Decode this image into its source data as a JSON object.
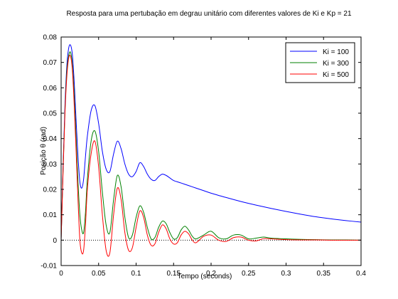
{
  "chart_data": {
    "type": "line",
    "title": "Resposta para uma pertubação em degrau unitário com diferentes valores de Ki e Kp = 21",
    "xlabel": "Tempo (seconds)",
    "ylabel": "Posição θ (rad)",
    "xlim": [
      0,
      0.4
    ],
    "ylim": [
      -0.01,
      0.08
    ],
    "xticks": [
      0,
      0.05,
      0.1,
      0.15,
      0.2,
      0.25,
      0.3,
      0.35,
      0.4
    ],
    "xtick_labels": [
      "0",
      "0.05",
      "0.1",
      "0.15",
      "0.2",
      "0.25",
      "0.3",
      "0.35",
      "0.4"
    ],
    "yticks": [
      -0.01,
      0,
      0.01,
      0.02,
      0.03,
      0.04,
      0.05,
      0.06,
      0.07,
      0.08
    ],
    "ytick_labels": [
      "-0.01",
      "0",
      "0.01",
      "0.02",
      "0.03",
      "0.04",
      "0.05",
      "0.06",
      "0.07",
      "0.08"
    ],
    "grid": false,
    "legend_position": "top-right",
    "zero_reference_line": {
      "value": 0,
      "style": "dotted",
      "color": "#000000"
    },
    "series": [
      {
        "name": "Ki = 100",
        "color": "#0000ff",
        "x": [
          0,
          0.0025,
          0.005,
          0.0075,
          0.01,
          0.0125,
          0.015,
          0.0175,
          0.02,
          0.0225,
          0.025,
          0.0275,
          0.03,
          0.0325,
          0.035,
          0.04,
          0.045,
          0.05,
          0.055,
          0.06,
          0.065,
          0.07,
          0.075,
          0.08,
          0.085,
          0.09,
          0.095,
          0.1,
          0.105,
          0.11,
          0.115,
          0.12,
          0.125,
          0.13,
          0.135,
          0.14,
          0.145,
          0.15,
          0.16,
          0.17,
          0.18,
          0.19,
          0.2,
          0.22,
          0.24,
          0.26,
          0.28,
          0.3,
          0.32,
          0.34,
          0.36,
          0.38,
          0.4
        ],
        "y": [
          0,
          0.028,
          0.052,
          0.068,
          0.0755,
          0.0768,
          0.073,
          0.062,
          0.047,
          0.033,
          0.023,
          0.0205,
          0.024,
          0.033,
          0.041,
          0.051,
          0.053,
          0.046,
          0.035,
          0.028,
          0.027,
          0.034,
          0.039,
          0.036,
          0.03,
          0.026,
          0.025,
          0.027,
          0.0305,
          0.029,
          0.026,
          0.024,
          0.0235,
          0.025,
          0.026,
          0.0255,
          0.0245,
          0.0235,
          0.0225,
          0.0215,
          0.0205,
          0.0195,
          0.0185,
          0.0168,
          0.0152,
          0.0138,
          0.0125,
          0.0113,
          0.0102,
          0.0092,
          0.0084,
          0.0077,
          0.0071
        ]
      },
      {
        "name": "Ki = 300",
        "color": "#008000",
        "x": [
          0,
          0.0025,
          0.005,
          0.0075,
          0.01,
          0.0125,
          0.015,
          0.0175,
          0.02,
          0.0225,
          0.025,
          0.0275,
          0.03,
          0.0325,
          0.035,
          0.04,
          0.045,
          0.05,
          0.055,
          0.06,
          0.065,
          0.07,
          0.075,
          0.08,
          0.085,
          0.09,
          0.095,
          0.1,
          0.105,
          0.11,
          0.115,
          0.12,
          0.125,
          0.13,
          0.135,
          0.14,
          0.145,
          0.15,
          0.155,
          0.16,
          0.165,
          0.17,
          0.175,
          0.18,
          0.19,
          0.2,
          0.21,
          0.22,
          0.23,
          0.24,
          0.25,
          0.26,
          0.27,
          0.28,
          0.3,
          0.32,
          0.34,
          0.36,
          0.38,
          0.4
        ],
        "y": [
          0,
          0.027,
          0.05,
          0.066,
          0.0725,
          0.074,
          0.069,
          0.057,
          0.04,
          0.023,
          0.01,
          0.004,
          0.003,
          0.011,
          0.024,
          0.039,
          0.043,
          0.035,
          0.019,
          0.006,
          0.003,
          0.016,
          0.0255,
          0.021,
          0.009,
          0.001,
          0.002,
          0.009,
          0.0135,
          0.011,
          0.005,
          0.0005,
          0.001,
          0.005,
          0.0075,
          0.0065,
          0.003,
          0.0005,
          0.001,
          0.004,
          0.0055,
          0.004,
          0.0015,
          0.0005,
          0.002,
          0.0035,
          0.001,
          0.0005,
          0.002,
          0.002,
          0.0005,
          0.0008,
          0.0012,
          0.0008,
          0.0005,
          0.0003,
          0.0002,
          0.0001,
          0.0001,
          0
        ]
      },
      {
        "name": "Ki = 500",
        "color": "#ff0000",
        "x": [
          0,
          0.0025,
          0.005,
          0.0075,
          0.01,
          0.0125,
          0.015,
          0.0175,
          0.02,
          0.0225,
          0.025,
          0.0275,
          0.03,
          0.0325,
          0.035,
          0.04,
          0.045,
          0.05,
          0.055,
          0.06,
          0.065,
          0.07,
          0.075,
          0.08,
          0.085,
          0.09,
          0.095,
          0.1,
          0.105,
          0.11,
          0.115,
          0.12,
          0.125,
          0.13,
          0.135,
          0.14,
          0.145,
          0.15,
          0.155,
          0.16,
          0.165,
          0.17,
          0.175,
          0.18,
          0.19,
          0.2,
          0.21,
          0.22,
          0.23,
          0.24,
          0.25,
          0.26,
          0.27,
          0.28,
          0.3,
          0.32,
          0.34,
          0.36,
          0.38,
          0.4
        ],
        "y": [
          0,
          0.026,
          0.049,
          0.064,
          0.0715,
          0.0725,
          0.067,
          0.053,
          0.035,
          0.016,
          0.0,
          -0.005,
          -0.004,
          0.006,
          0.02,
          0.034,
          0.039,
          0.029,
          0.01,
          -0.004,
          -0.005,
          0.01,
          0.0205,
          0.016,
          0.003,
          -0.004,
          -0.003,
          0.005,
          0.0115,
          0.009,
          0.002,
          -0.002,
          -0.0015,
          0.003,
          0.006,
          0.0045,
          0.0005,
          -0.0015,
          -0.001,
          0.002,
          0.0035,
          0.0025,
          0.0,
          -0.001,
          0.0015,
          0.002,
          0.0,
          -0.0005,
          0.001,
          0.0012,
          0.0,
          -0.0003,
          0.0006,
          0.0005,
          0.0002,
          0.0001,
          0.0001,
          0,
          0,
          0
        ]
      }
    ]
  }
}
